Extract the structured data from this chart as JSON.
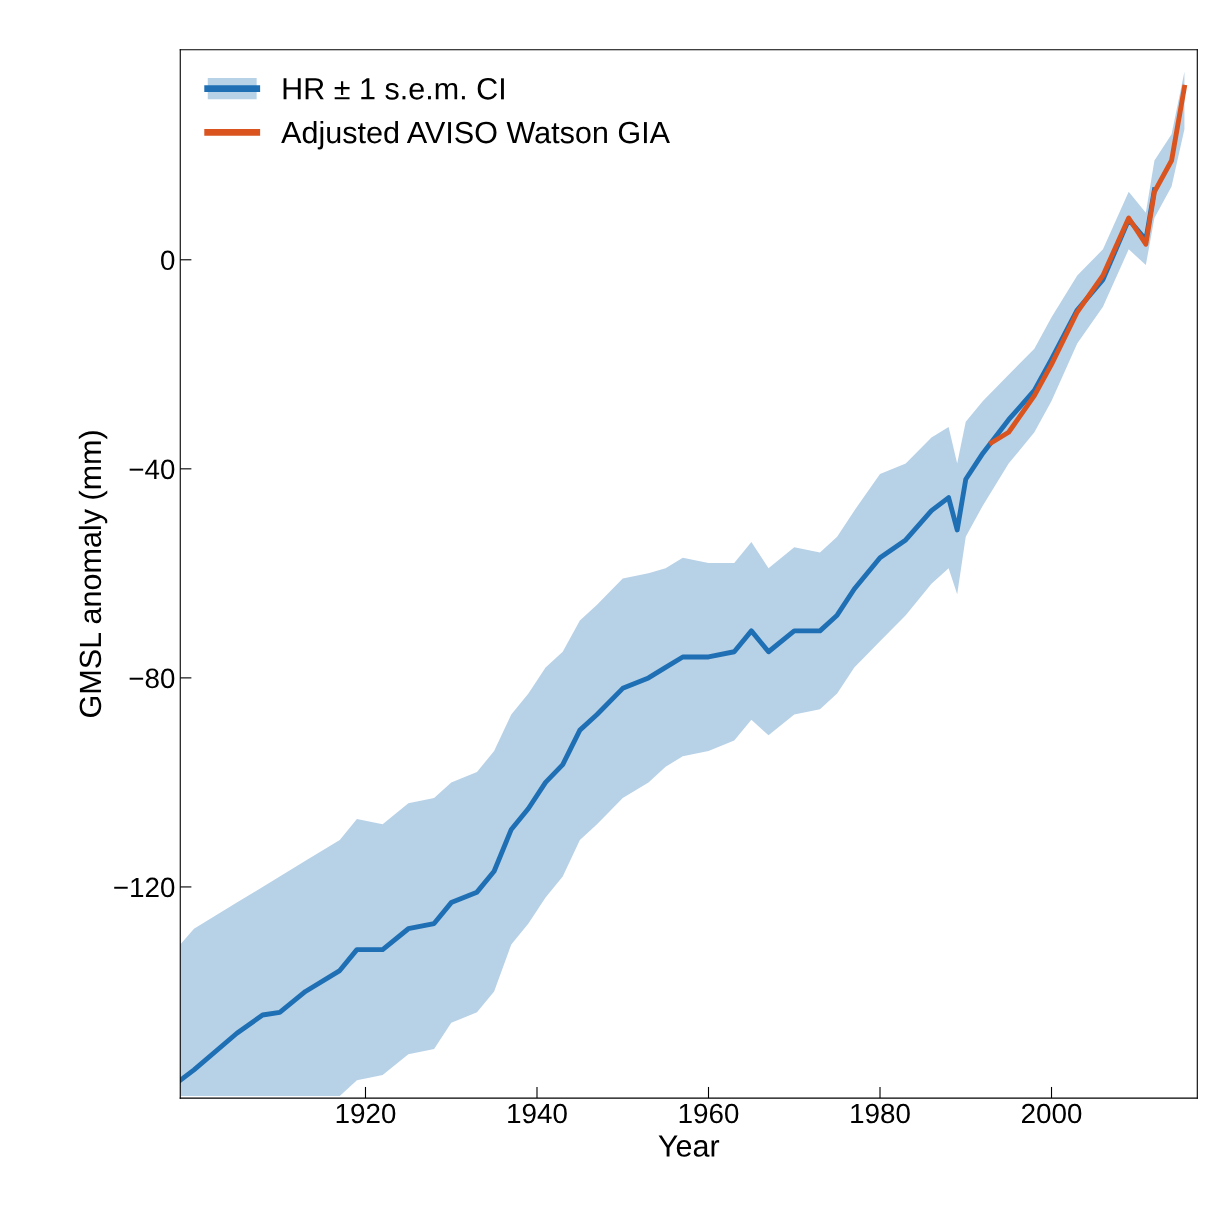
{
  "chart_data": {
    "type": "line",
    "xlabel": "Year",
    "ylabel": "GMSL anomaly (mm)",
    "xlim": [
      1898.4,
      2017
    ],
    "ylim": [
      -160.4,
      40.2
    ],
    "xticks": [
      1920,
      1940,
      1960,
      1980,
      2000
    ],
    "yticks": [
      {
        "value": -120,
        "label": "−120"
      },
      {
        "value": -80,
        "label": "−80"
      },
      {
        "value": -40,
        "label": "−40"
      },
      0
    ],
    "grid": false,
    "legend": "top left",
    "series": [
      {
        "name": "HR ± 1 s.e.m. CI",
        "color": "#1f6fb4",
        "x": [
          1898.4,
          1900,
          1905,
          1908,
          1910,
          1913,
          1917,
          1919,
          1922,
          1925,
          1928,
          1930,
          1933,
          1935,
          1937,
          1939,
          1941,
          1943,
          1945,
          1947,
          1950,
          1953,
          1955,
          1957,
          1960,
          1963,
          1965,
          1967,
          1970,
          1973,
          1975,
          1977,
          1980,
          1983,
          1986,
          1988,
          1989,
          1990,
          1992,
          1995,
          1998,
          2000,
          2003,
          2006,
          2009,
          2011,
          2012,
          2014,
          2015.5
        ],
        "values": [
          -157,
          -155,
          -148,
          -144.5,
          -144,
          -140,
          -136,
          -132,
          -132,
          -128,
          -127,
          -123,
          -121,
          -117,
          -109,
          -105,
          -100,
          -96.6,
          -90,
          -87,
          -82,
          -80,
          -78,
          -76,
          -76,
          -75,
          -71,
          -75,
          -71,
          -71,
          -68,
          -63,
          -57,
          -53.6,
          -48,
          -45.5,
          -51.7,
          -42,
          -37,
          -30.6,
          -25,
          -19,
          -9.6,
          -3.8,
          7.7,
          3.8,
          13.4,
          null,
          null
        ],
        "lower": [
          -160,
          -160,
          -160,
          -160,
          -160,
          -160,
          -160,
          -157,
          -156,
          -152,
          -151,
          -146,
          -144,
          -140,
          -131,
          -127,
          -122,
          -118,
          -111,
          -108,
          -103,
          -100,
          -97,
          -95,
          -94,
          -92,
          -88,
          -91,
          -87,
          -86,
          -83,
          -78,
          -73,
          -68,
          -62,
          -59,
          -64,
          -53,
          -47,
          -39,
          -33,
          -27,
          -16,
          -9,
          2,
          -1,
          8,
          14,
          25
        ],
        "upper": [
          -131,
          -128,
          -123,
          -120,
          -118,
          -115,
          -111,
          -107,
          -108,
          -104,
          -103,
          -100,
          -98,
          -94,
          -87,
          -83,
          -78,
          -75,
          -69,
          -66,
          -61,
          -60,
          -59,
          -57,
          -58,
          -58,
          -54,
          -59,
          -55,
          -56,
          -53,
          -48,
          -41,
          -39,
          -34,
          -32,
          -39,
          -31,
          -27,
          -22,
          -17,
          -11,
          -3,
          2,
          13,
          9,
          19,
          24,
          36
        ]
      },
      {
        "name": "Adjusted AVISO Watson GIA",
        "color": "#d9541e",
        "x": [
          1993,
          1995,
          1998,
          2000,
          2003,
          2006,
          2009,
          2011,
          2012,
          2014,
          2015.5
        ],
        "values": [
          -35,
          -33,
          -26,
          -20,
          -10,
          -3,
          8,
          3,
          13,
          19,
          33
        ]
      }
    ]
  }
}
